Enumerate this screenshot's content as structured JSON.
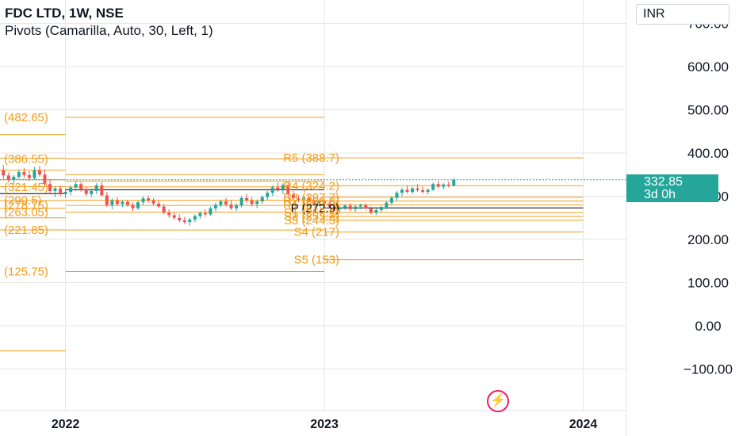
{
  "header": {
    "symbol_line": "FDC LTD, 1W, NSE",
    "indicator_line": "Pivots (Camarilla, Auto, 30, Left, 1)"
  },
  "currency": "INR",
  "last_price": {
    "value": "332.85",
    "countdown": "3d 0h"
  },
  "icons": {
    "bolt": "lightning-icon"
  },
  "colors": {
    "pivot": "#f59c1a",
    "pivot_p": "#000000",
    "up": "#26a69a",
    "down": "#ef5350",
    "grid": "#e6e6e6",
    "axis_text": "#131722"
  },
  "chart_data": {
    "type": "candlestick",
    "y_axis": {
      "ticks": [
        "700.00",
        "600.00",
        "500.00",
        "400.00",
        "300.00",
        "200.00",
        "100.00",
        "0.00",
        "−100.00"
      ],
      "range": [
        -200,
        780
      ],
      "side": "right"
    },
    "x_axis": {
      "ticks": [
        "2022",
        "2023",
        "2024"
      ],
      "domain": [
        2021.75,
        2024.17
      ]
    },
    "pivot_periods": [
      {
        "from": 2021.7,
        "to": 2022.0,
        "labels": [
          "(482.65)",
          "(386.55)",
          "(321.45)",
          "(290.5)",
          "(278.75)",
          "(263.05)",
          "(221.85)",
          "(125.75)"
        ],
        "levels": [
          {
            "k": "R5",
            "v": 443
          },
          {
            "k": "R4",
            "v": 388
          },
          {
            "k": "R3",
            "v": 360
          },
          {
            "k": "R2",
            "v": 338
          },
          {
            "k": "R1",
            "v": 322
          },
          {
            "k": "P",
            "v": 306
          },
          {
            "k": "S1",
            "v": 290
          },
          {
            "k": "S2",
            "v": 272
          },
          {
            "k": "S3",
            "v": 250
          },
          {
            "k": "S4",
            "v": 222
          },
          {
            "k": "S5",
            "v": -58
          }
        ]
      },
      {
        "from": 2022.0,
        "to": 2023.0,
        "labels": [
          "R5 (388.7)",
          "R4 (324.2)",
          "R3 (297.7)",
          "R2 (288.8)",
          "R1 (279.9)",
          "P (272.9)",
          "S1 (262.1)",
          "S2 (253.2)",
          "S3 (244.3)",
          "S4 (217)",
          "S5 (153)"
        ],
        "levels": [
          {
            "k": "R5",
            "v": 482.65
          },
          {
            "k": "R4",
            "v": 386.55
          },
          {
            "k": "R3",
            "v": 350
          },
          {
            "k": "R2",
            "v": 335
          },
          {
            "k": "R1",
            "v": 321.45
          },
          {
            "k": "P",
            "v": 315
          },
          {
            "k": "S1",
            "v": 290.5
          },
          {
            "k": "S2",
            "v": 278.75
          },
          {
            "k": "S3",
            "v": 263.05
          },
          {
            "k": "S4",
            "v": 221.85
          },
          {
            "k": "S5",
            "v": 125.75
          }
        ]
      },
      {
        "from": 2023.0,
        "to": 2024.0,
        "levels": [
          {
            "k": "R5",
            "v": 388.7
          },
          {
            "k": "R4",
            "v": 324.2
          },
          {
            "k": "R3",
            "v": 297.7
          },
          {
            "k": "R2",
            "v": 288.8
          },
          {
            "k": "R1",
            "v": 279.9
          },
          {
            "k": "P",
            "v": 272.9
          },
          {
            "k": "S1",
            "v": 262.1
          },
          {
            "k": "S2",
            "v": 253.2
          },
          {
            "k": "S3",
            "v": 244.3
          },
          {
            "k": "S4",
            "v": 217
          },
          {
            "k": "S5",
            "v": 153
          }
        ]
      }
    ],
    "candles": [
      [
        2021.76,
        360,
        372,
        340,
        348
      ],
      [
        2021.78,
        348,
        355,
        332,
        338
      ],
      [
        2021.8,
        338,
        350,
        328,
        345
      ],
      [
        2021.82,
        345,
        362,
        340,
        356
      ],
      [
        2021.84,
        356,
        365,
        342,
        349
      ],
      [
        2021.86,
        349,
        358,
        335,
        342
      ],
      [
        2021.88,
        342,
        368,
        338,
        360
      ],
      [
        2021.9,
        360,
        370,
        345,
        350
      ],
      [
        2021.92,
        350,
        362,
        322,
        328
      ],
      [
        2021.94,
        328,
        338,
        305,
        312
      ],
      [
        2021.96,
        312,
        322,
        298,
        318
      ],
      [
        2021.98,
        318,
        325,
        300,
        305
      ],
      [
        2022.0,
        305,
        318,
        296,
        310
      ],
      [
        2022.02,
        310,
        325,
        302,
        320
      ],
      [
        2022.04,
        320,
        335,
        312,
        328
      ],
      [
        2022.06,
        328,
        333,
        310,
        315
      ],
      [
        2022.08,
        315,
        322,
        300,
        305
      ],
      [
        2022.1,
        305,
        318,
        298,
        312
      ],
      [
        2022.12,
        312,
        330,
        305,
        325
      ],
      [
        2022.14,
        325,
        332,
        300,
        302
      ],
      [
        2022.16,
        302,
        310,
        275,
        280
      ],
      [
        2022.18,
        280,
        295,
        270,
        290
      ],
      [
        2022.2,
        290,
        298,
        278,
        282
      ],
      [
        2022.22,
        282,
        290,
        275,
        287
      ],
      [
        2022.24,
        287,
        292,
        276,
        280
      ],
      [
        2022.26,
        280,
        286,
        266,
        272
      ],
      [
        2022.28,
        272,
        290,
        268,
        286
      ],
      [
        2022.3,
        286,
        300,
        280,
        295
      ],
      [
        2022.32,
        295,
        302,
        285,
        290
      ],
      [
        2022.34,
        290,
        296,
        278,
        283
      ],
      [
        2022.36,
        283,
        290,
        272,
        276
      ],
      [
        2022.38,
        276,
        282,
        258,
        262
      ],
      [
        2022.4,
        262,
        270,
        250,
        256
      ],
      [
        2022.42,
        256,
        262,
        245,
        250
      ],
      [
        2022.44,
        250,
        258,
        240,
        244
      ],
      [
        2022.46,
        244,
        252,
        236,
        240
      ],
      [
        2022.48,
        240,
        250,
        232,
        246
      ],
      [
        2022.5,
        246,
        258,
        240,
        254
      ],
      [
        2022.52,
        254,
        265,
        248,
        261
      ],
      [
        2022.54,
        261,
        270,
        252,
        258
      ],
      [
        2022.56,
        258,
        276,
        255,
        272
      ],
      [
        2022.58,
        272,
        285,
        265,
        280
      ],
      [
        2022.6,
        280,
        292,
        275,
        288
      ],
      [
        2022.62,
        288,
        296,
        276,
        281
      ],
      [
        2022.64,
        281,
        290,
        268,
        272
      ],
      [
        2022.66,
        272,
        284,
        265,
        279
      ],
      [
        2022.68,
        279,
        300,
        274,
        296
      ],
      [
        2022.7,
        296,
        305,
        285,
        290
      ],
      [
        2022.72,
        290,
        298,
        276,
        282
      ],
      [
        2022.74,
        282,
        292,
        272,
        288
      ],
      [
        2022.76,
        288,
        302,
        282,
        298
      ],
      [
        2022.78,
        298,
        312,
        292,
        308
      ],
      [
        2022.8,
        308,
        325,
        300,
        320
      ],
      [
        2022.82,
        320,
        332,
        310,
        316
      ],
      [
        2022.84,
        316,
        330,
        305,
        326
      ],
      [
        2022.86,
        326,
        332,
        300,
        304
      ],
      [
        2022.88,
        304,
        312,
        290,
        295
      ],
      [
        2022.9,
        295,
        302,
        286,
        292
      ],
      [
        2022.92,
        292,
        300,
        285,
        297
      ],
      [
        2022.94,
        297,
        303,
        288,
        290
      ],
      [
        2022.96,
        290,
        296,
        280,
        284
      ],
      [
        2022.98,
        284,
        292,
        277,
        288
      ],
      [
        2023.0,
        288,
        294,
        280,
        283
      ],
      [
        2023.02,
        283,
        290,
        272,
        276
      ],
      [
        2023.04,
        276,
        282,
        266,
        270
      ],
      [
        2023.06,
        270,
        278,
        262,
        274
      ],
      [
        2023.08,
        274,
        282,
        268,
        278
      ],
      [
        2023.1,
        278,
        284,
        266,
        270
      ],
      [
        2023.12,
        270,
        280,
        264,
        276
      ],
      [
        2023.14,
        276,
        283,
        270,
        279
      ],
      [
        2023.16,
        279,
        284,
        268,
        272
      ],
      [
        2023.18,
        272,
        276,
        258,
        262
      ],
      [
        2023.2,
        262,
        272,
        256,
        268
      ],
      [
        2023.22,
        268,
        278,
        262,
        275
      ],
      [
        2023.24,
        275,
        288,
        270,
        285
      ],
      [
        2023.26,
        285,
        300,
        280,
        296
      ],
      [
        2023.28,
        296,
        312,
        290,
        308
      ],
      [
        2023.3,
        308,
        320,
        300,
        315
      ],
      [
        2023.32,
        315,
        325,
        306,
        310
      ],
      [
        2023.34,
        310,
        322,
        305,
        318
      ],
      [
        2023.36,
        318,
        328,
        310,
        314
      ],
      [
        2023.38,
        314,
        322,
        306,
        310
      ],
      [
        2023.4,
        310,
        318,
        304,
        315
      ],
      [
        2023.42,
        315,
        332,
        312,
        328
      ],
      [
        2023.44,
        328,
        336,
        318,
        322
      ],
      [
        2023.46,
        322,
        330,
        316,
        327
      ],
      [
        2023.48,
        327,
        334,
        320,
        325
      ],
      [
        2023.5,
        325,
        342,
        322,
        338
      ]
    ]
  }
}
